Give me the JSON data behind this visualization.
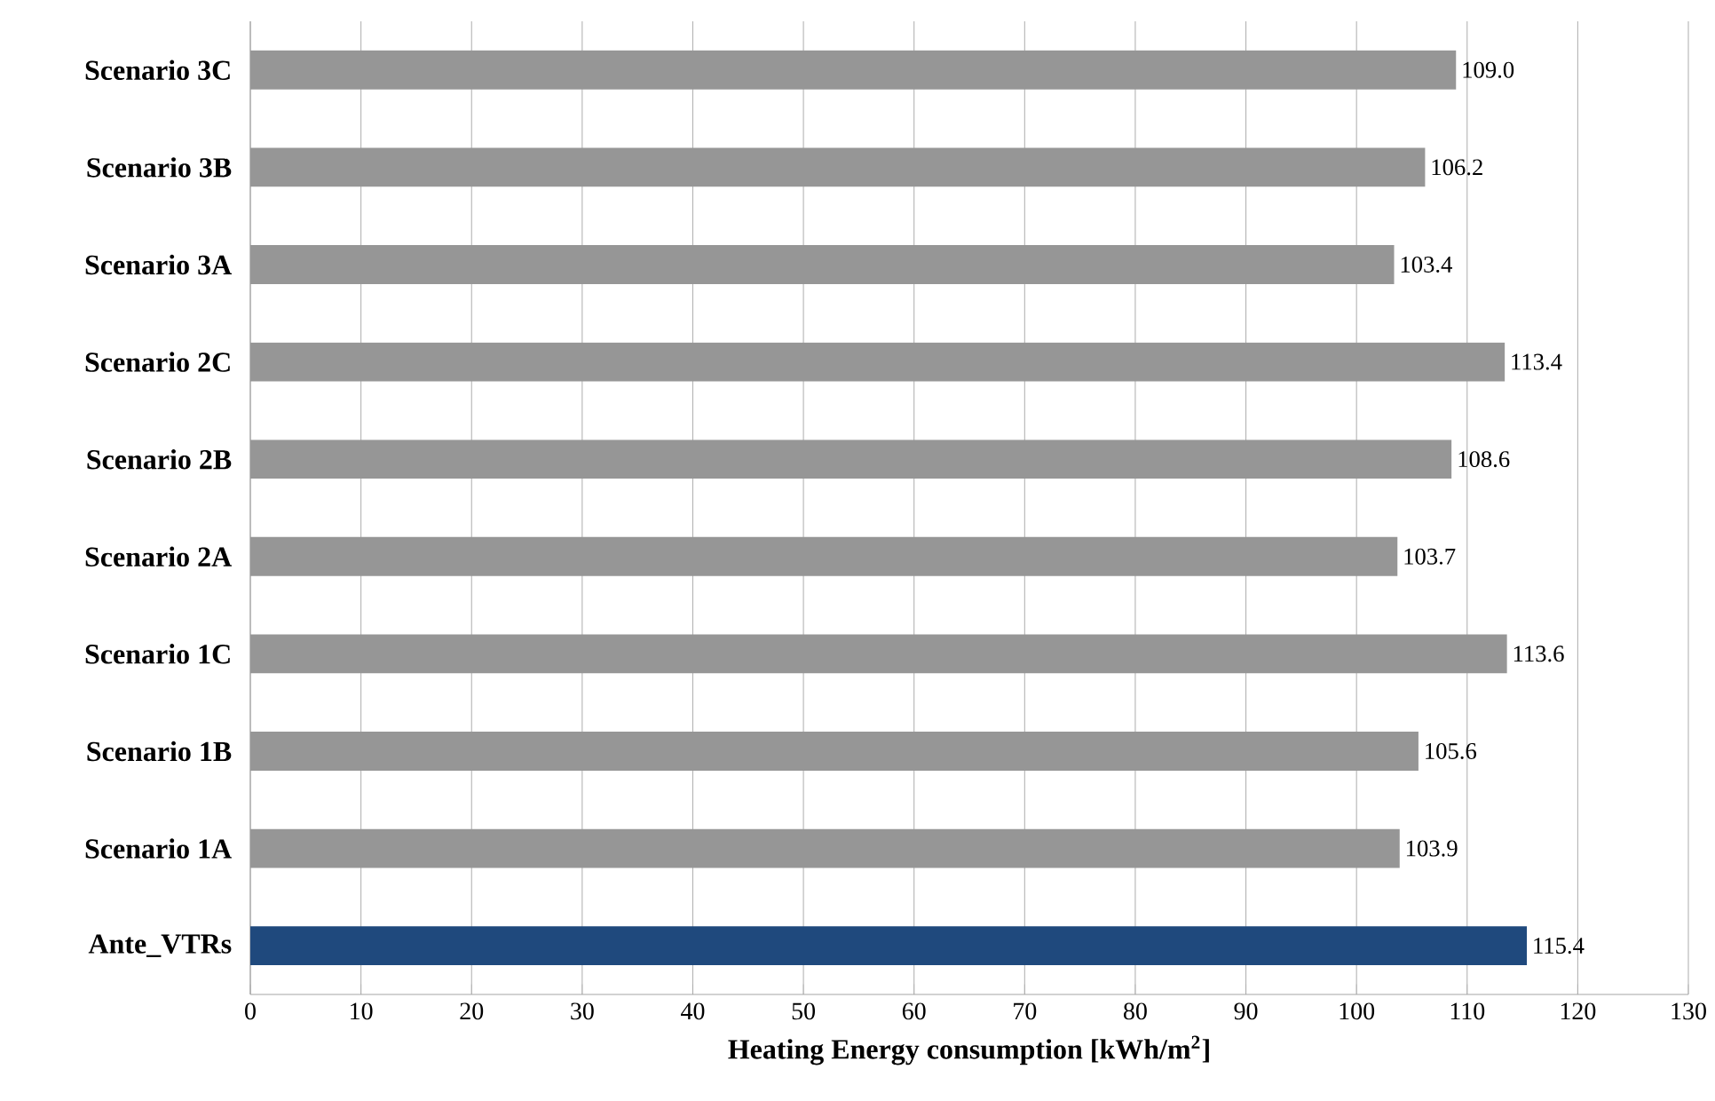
{
  "chart_data": {
    "type": "bar",
    "orientation": "horizontal",
    "xlabel": "Heating Energy consumption [kWh/m$^{2}$]",
    "categories": [
      "Scenario 3C",
      "Scenario 3B",
      "Scenario 3A",
      "Scenario 2C",
      "Scenario 2B",
      "Scenario 2A",
      "Scenario 1C",
      "Scenario 1B",
      "Scenario 1A",
      "Ante_VTRs"
    ],
    "values": [
      109.0,
      106.2,
      103.4,
      113.4,
      108.6,
      103.7,
      113.6,
      105.6,
      103.9,
      115.4
    ],
    "value_labels": [
      "109.0",
      "106.2",
      "103.4",
      "113.4",
      "108.6",
      "103.7",
      "113.6",
      "105.6",
      "103.9",
      "115.4"
    ],
    "colors": [
      "#969696",
      "#969696",
      "#969696",
      "#969696",
      "#969696",
      "#969696",
      "#969696",
      "#969696",
      "#969696",
      "#1f497d"
    ],
    "xlim": [
      0,
      130
    ],
    "xticks": [
      0,
      10,
      20,
      30,
      40,
      50,
      60,
      70,
      80,
      90,
      100,
      110,
      120,
      130
    ],
    "grid": "x"
  }
}
